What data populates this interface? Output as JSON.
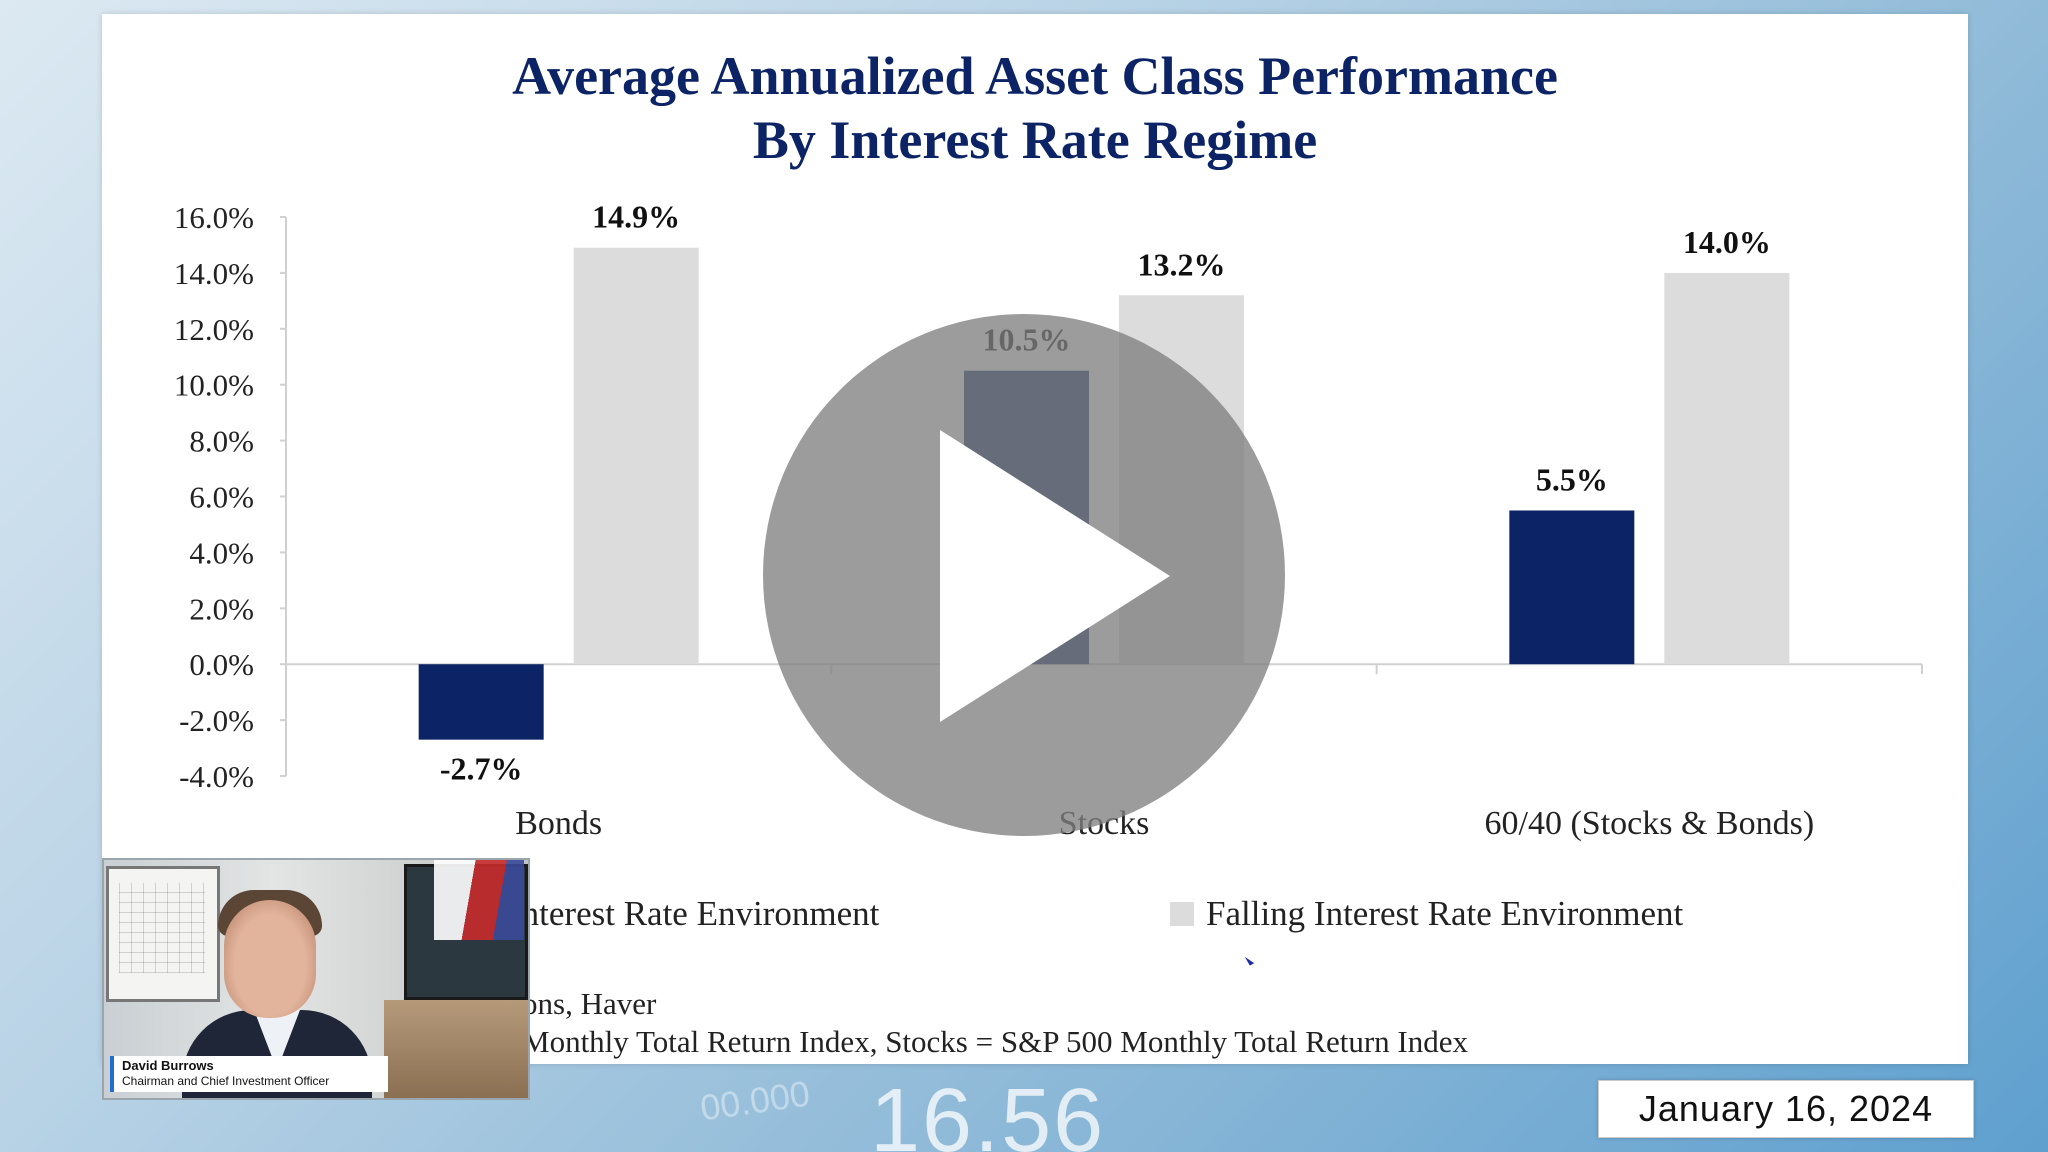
{
  "slide": {
    "title_line1": "Average Annualized Asset Class Performance",
    "title_line2": "By Interest Rate Regime",
    "legend": [
      {
        "label": "Interest Rate Environment",
        "color": "#0c2466"
      },
      {
        "label": "Falling Interest Rate Environment",
        "color": "#dcdcdc"
      }
    ],
    "source_line1": "ons, Haver",
    "source_line2": "Monthly Total Return Index, Stocks = S&P 500 Monthly Total Return Index"
  },
  "chart_data": {
    "type": "bar",
    "categories": [
      "Bonds",
      "Stocks",
      "60/40 (Stocks & Bonds)"
    ],
    "series": [
      {
        "values": [
          -2.7,
          10.5,
          5.5
        ],
        "labels": [
          "-2.7%",
          "10.5%",
          "5.5%"
        ],
        "color": "#0c2466"
      },
      {
        "name": "Falling Interest Rate Environment",
        "values": [
          14.9,
          13.2,
          14.0
        ],
        "labels": [
          "14.9%",
          "13.2%",
          "14.0%"
        ],
        "color": "#dcdcdc"
      }
    ],
    "y_ticks": [
      16,
      14,
      12,
      10,
      8,
      6,
      4,
      2,
      0,
      -2,
      -4
    ],
    "y_tick_labels": [
      "16.0%",
      "14.0%",
      "12.0%",
      "10.0%",
      "8.0%",
      "6.0%",
      "4.0%",
      "2.0%",
      "0.0%",
      "-2.0%",
      "-4.0%"
    ],
    "ylim": [
      -4,
      16
    ],
    "grid": false
  },
  "presenter": {
    "name": "David Burrows",
    "role": "Chairman and Chief Investment Officer"
  },
  "overlay": {
    "date": "January 16, 2024",
    "background_number": "16.56",
    "background_number_small": "00.000"
  },
  "player": {
    "play_icon": "play-icon"
  }
}
